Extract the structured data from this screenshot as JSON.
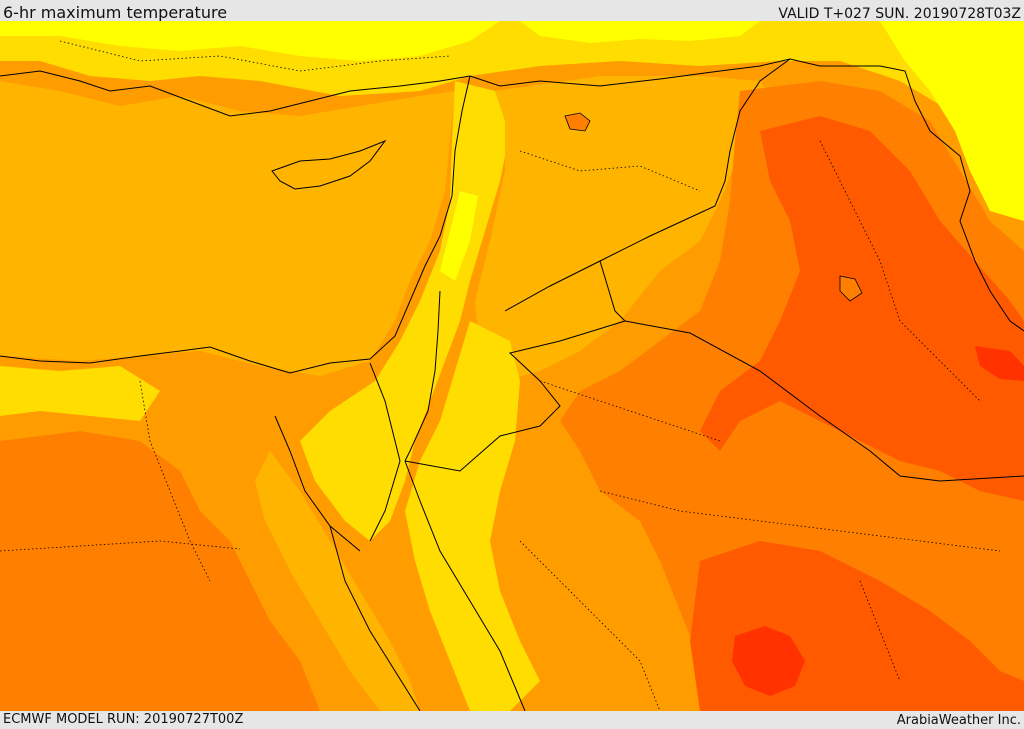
{
  "header": {
    "title": "6-hr maximum temperature",
    "valid": "VALID T+027 SUN. 20190728T03Z"
  },
  "footer": {
    "model_run": "ECMWF MODEL RUN: 20190727T00Z",
    "credit": "ArabiaWeather Inc."
  },
  "map": {
    "colors": {
      "yellow": "#ffff00",
      "gold": "#ffdd00",
      "light_orange": "#ffb400",
      "orange": "#ff9c00",
      "dark_orange": "#ff7f00",
      "red_orange": "#ff5a00",
      "red": "#ff3200",
      "border": "#000000"
    }
  }
}
